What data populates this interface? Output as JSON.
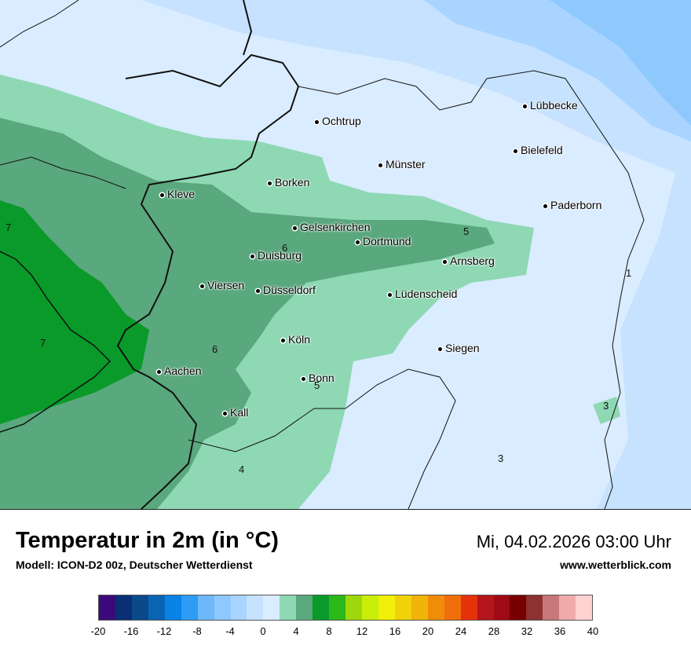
{
  "title": "Temperatur in 2m (in °C)",
  "model": "Modell: ICON-D2 00z, Deutscher Wetterdienst",
  "datetime": "Mi, 04.02.2026 03:00 Uhr",
  "website": "www.wetterblick.com",
  "cities": [
    {
      "name": "Ochtrup"
    },
    {
      "name": "Lübbecke"
    },
    {
      "name": "Bielefeld"
    },
    {
      "name": "Münster"
    },
    {
      "name": "Borken"
    },
    {
      "name": "Kleve"
    },
    {
      "name": "Paderborn"
    },
    {
      "name": "Gelsenkirchen"
    },
    {
      "name": "Dortmund"
    },
    {
      "name": "Duisburg"
    },
    {
      "name": "Arnsberg"
    },
    {
      "name": "Viersen"
    },
    {
      "name": "Düsseldorf"
    },
    {
      "name": "Lüdenscheid"
    },
    {
      "name": "Köln"
    },
    {
      "name": "Siegen"
    },
    {
      "name": "Aachen"
    },
    {
      "name": "Bonn"
    },
    {
      "name": "Kall"
    }
  ],
  "isotherm_labels": [
    "7",
    "7",
    "6",
    "6",
    "5",
    "5",
    "4",
    "3",
    "3",
    "1"
  ],
  "legend": {
    "colors": [
      "#3a0a7a",
      "#0a2f75",
      "#0a4a8a",
      "#0a64b4",
      "#0a82e6",
      "#2e9cf5",
      "#6cb8fa",
      "#8ec8fc",
      "#a8d4ff",
      "#c6e2ff",
      "#daecff",
      "#8ed8b4",
      "#5aa87e",
      "#0a9a2a",
      "#2ab81a",
      "#9ed80a",
      "#c8ee0a",
      "#f0f00a",
      "#f0d20a",
      "#f0b40a",
      "#f08c0a",
      "#f06e0a",
      "#e6320a",
      "#b4141a",
      "#a00a14",
      "#780000",
      "#8c3232",
      "#c87878",
      "#f0aaaa",
      "#ffd2d2"
    ],
    "ticks": [
      "-20",
      "-16",
      "-12",
      "-8",
      "-4",
      "0",
      "4",
      "8",
      "12",
      "16",
      "20",
      "24",
      "28",
      "32",
      "36",
      "40"
    ]
  }
}
